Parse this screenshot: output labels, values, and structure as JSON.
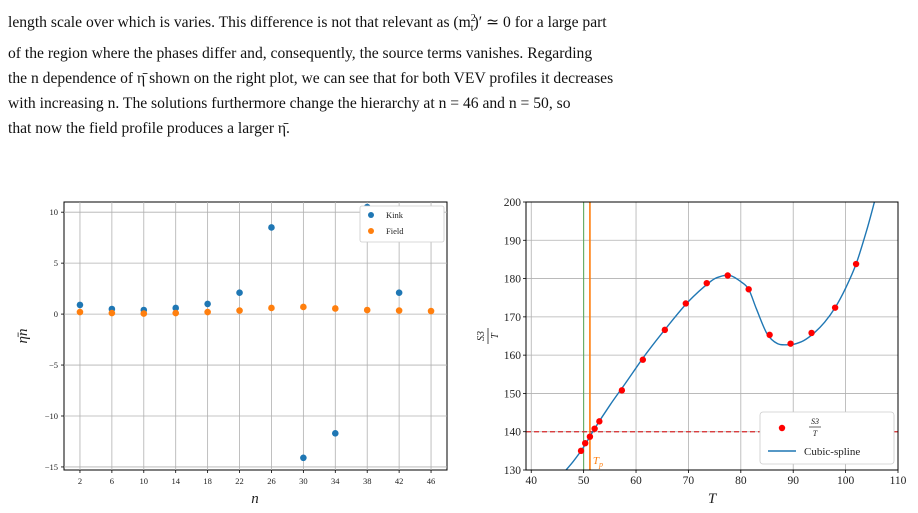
{
  "paragraph": {
    "line1": "length scale over which is varies. This difference is not that relevant as (m",
    "line1_sup": "2",
    "line1_sub": "t",
    "line1_b": ")′ ≃ 0 for a large part",
    "line2": "of the region where the phases differ and, consequently, the source terms vanishes. Regarding",
    "line3": "the n dependence of η̄ shown on the right plot, we can see that for both VEV profiles it decreases",
    "line4": "with increasing n. The solutions furthermore change the hierarchy at n = 46 and n = 50, so",
    "line5": "that now the field profile produces a larger η̄."
  },
  "chart_data": [
    {
      "type": "scatter",
      "xlabel": "n",
      "ylabel": "η̄n",
      "x_ticks": [
        2,
        6,
        10,
        14,
        18,
        22,
        26,
        30,
        34,
        38,
        42,
        46
      ],
      "y_ticks": [
        -15,
        -10,
        -5,
        0,
        5,
        10
      ],
      "xlim": [
        0,
        48
      ],
      "ylim": [
        -15.3,
        11
      ],
      "grid": true,
      "legend_position": "top-right",
      "series": [
        {
          "name": "Kink",
          "color": "#1f77b4",
          "x": [
            2,
            6,
            10,
            14,
            18,
            22,
            26,
            30,
            34,
            38,
            42
          ],
          "y": [
            0.9,
            0.5,
            0.4,
            0.6,
            1.0,
            2.1,
            8.5,
            -14.1,
            -11.7,
            10.5,
            2.1
          ]
        },
        {
          "name": "Field",
          "color": "#ff7f0e",
          "x": [
            2,
            6,
            10,
            14,
            18,
            22,
            26,
            30,
            34,
            38,
            42,
            46
          ],
          "y": [
            0.2,
            0.1,
            0.05,
            0.1,
            0.2,
            0.35,
            0.6,
            0.7,
            0.55,
            0.4,
            0.35,
            0.3
          ]
        }
      ]
    },
    {
      "type": "line",
      "xlabel": "T",
      "ylabel": "S3/T",
      "x_ticks": [
        40,
        50,
        60,
        70,
        80,
        90,
        100,
        110
      ],
      "y_ticks": [
        130,
        140,
        150,
        160,
        170,
        180,
        190,
        200
      ],
      "xlim": [
        39,
        110
      ],
      "ylim": [
        130,
        200
      ],
      "grid": true,
      "legend_position": "bottom-right",
      "threshold_y": 140,
      "threshold_color": "#d62728",
      "tp_label": "T",
      "tp_sub": "p",
      "tp_x": 51.2,
      "tp_color": "#ff7f0e",
      "green_x": 50.0,
      "green_color": "#2ca02c",
      "points_color": "#ff0000",
      "curve_color": "#1f77b4",
      "points": {
        "name_num": "S3",
        "name_den": "T",
        "x": [
          49.5,
          50.3,
          51.2,
          52.1,
          53.0,
          57.3,
          61.3,
          65.5,
          69.5,
          73.5,
          77.5,
          81.5,
          85.5,
          89.5,
          93.5,
          98.0,
          102.0
        ],
        "y": [
          135.0,
          137.0,
          138.7,
          140.8,
          142.7,
          150.8,
          158.8,
          166.6,
          173.5,
          178.8,
          180.8,
          177.2,
          165.3,
          163.0,
          165.8,
          172.4,
          183.8
        ]
      },
      "curve": {
        "name": "Cubic-spline",
        "x": [
          46,
          48,
          50,
          52,
          55,
          58,
          62,
          66,
          70,
          74,
          76,
          78,
          80,
          81.5,
          83,
          85,
          87,
          89,
          90,
          92,
          94,
          96,
          98,
          100,
          102,
          104,
          105.5
        ],
        "y": [
          129,
          132.2,
          136,
          140.6,
          146.9,
          152.7,
          160.5,
          167.5,
          174.0,
          179.0,
          180.5,
          180.8,
          179.2,
          177.2,
          172.0,
          165.6,
          163.0,
          162.7,
          162.8,
          163.8,
          165.8,
          168.6,
          172.4,
          177.5,
          183.8,
          192.5,
          200
        ]
      }
    }
  ]
}
